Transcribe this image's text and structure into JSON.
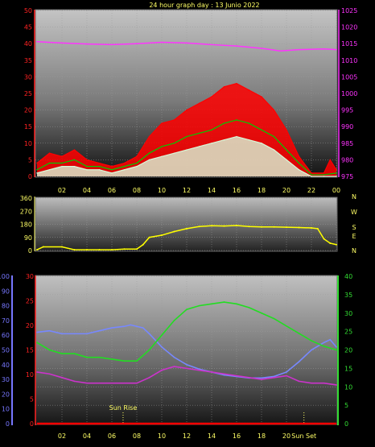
{
  "title": "24 hour graph day : 13 Junio 2022",
  "colors": {
    "red": "#ff0000",
    "green": "#00cc00",
    "pale": "#d8f8d8",
    "magenta": "#ff33ff",
    "yellow": "#ffff00",
    "blue": "#7788ff",
    "purple": "#cc33cc",
    "lime": "#22dd22",
    "ticks": "#ffff66",
    "redaxis": "#ff2222",
    "blueaxis": "#7777ff",
    "greenaxis": "#33dd33"
  },
  "chart_data": [
    {
      "type": "line",
      "panel": "wind-pressure",
      "x_ticks": [
        "02",
        "04",
        "06",
        "08",
        "10",
        "12",
        "14",
        "16",
        "18",
        "20",
        "22",
        "00"
      ],
      "x_tick_hours": [
        2,
        4,
        6,
        8,
        10,
        12,
        14,
        16,
        18,
        20,
        22,
        24
      ],
      "y_left": {
        "range": [
          0,
          50
        ],
        "ticks": [
          "0",
          "5",
          "10",
          "15",
          "20",
          "25",
          "30",
          "35",
          "40",
          "45",
          "50"
        ]
      },
      "y_right": {
        "range": [
          975,
          1025
        ],
        "ticks": [
          "975",
          "980",
          "985",
          "990",
          "995",
          "1000",
          "1005",
          "1010",
          "1015",
          "1020",
          "1025"
        ]
      },
      "grid": true,
      "series": [
        {
          "key": "gust",
          "color": "red",
          "axis": "left",
          "points": [
            [
              0,
              4
            ],
            [
              1,
              7
            ],
            [
              2,
              6
            ],
            [
              3,
              8
            ],
            [
              4,
              5
            ],
            [
              5,
              4
            ],
            [
              6,
              3
            ],
            [
              7,
              4
            ],
            [
              8,
              6
            ],
            [
              9,
              12
            ],
            [
              10,
              16
            ],
            [
              11,
              17
            ],
            [
              12,
              20
            ],
            [
              13,
              22
            ],
            [
              14,
              24
            ],
            [
              15,
              27
            ],
            [
              16,
              28
            ],
            [
              17,
              26
            ],
            [
              18,
              24
            ],
            [
              19,
              20
            ],
            [
              20,
              14
            ],
            [
              21,
              6
            ],
            [
              22,
              1
            ],
            [
              23,
              1
            ],
            [
              23.5,
              5
            ],
            [
              24,
              2
            ]
          ]
        },
        {
          "key": "avg-speed",
          "color": "green",
          "axis": "left",
          "points": [
            [
              0,
              2
            ],
            [
              1,
              4
            ],
            [
              2,
              4
            ],
            [
              3,
              5
            ],
            [
              4,
              3
            ],
            [
              5,
              3
            ],
            [
              6,
              2
            ],
            [
              7,
              3
            ],
            [
              8,
              4
            ],
            [
              9,
              7
            ],
            [
              10,
              9
            ],
            [
              11,
              10
            ],
            [
              12,
              12
            ],
            [
              13,
              13
            ],
            [
              14,
              14
            ],
            [
              15,
              16
            ],
            [
              16,
              17
            ],
            [
              17,
              16
            ],
            [
              18,
              14
            ],
            [
              19,
              12
            ],
            [
              20,
              8
            ],
            [
              21,
              4
            ],
            [
              22,
              0.5
            ],
            [
              23,
              0.5
            ],
            [
              24,
              1
            ]
          ]
        },
        {
          "key": "speed",
          "color": "pale",
          "axis": "left",
          "points": [
            [
              0,
              1
            ],
            [
              1,
              2
            ],
            [
              2,
              3
            ],
            [
              3,
              3
            ],
            [
              4,
              2
            ],
            [
              5,
              2
            ],
            [
              6,
              1
            ],
            [
              7,
              2
            ],
            [
              8,
              3
            ],
            [
              9,
              5
            ],
            [
              10,
              6
            ],
            [
              11,
              7
            ],
            [
              12,
              8
            ],
            [
              13,
              9
            ],
            [
              14,
              10
            ],
            [
              15,
              11
            ],
            [
              16,
              12
            ],
            [
              17,
              11
            ],
            [
              18,
              10
            ],
            [
              19,
              8
            ],
            [
              20,
              5
            ],
            [
              21,
              2
            ],
            [
              22,
              0
            ],
            [
              23,
              0
            ],
            [
              24,
              0
            ]
          ]
        },
        {
          "key": "pressure",
          "color": "magenta",
          "axis": "right",
          "points": [
            [
              0,
              1015.6
            ],
            [
              2,
              1015.2
            ],
            [
              4,
              1014.9
            ],
            [
              6,
              1014.7
            ],
            [
              8,
              1015.0
            ],
            [
              10,
              1015.4
            ],
            [
              12,
              1015.2
            ],
            [
              14,
              1014.7
            ],
            [
              16,
              1014.3
            ],
            [
              18,
              1013.6
            ],
            [
              19.5,
              1012.8
            ],
            [
              21,
              1013.2
            ],
            [
              23,
              1013.4
            ],
            [
              24,
              1013.2
            ]
          ]
        }
      ]
    },
    {
      "type": "line",
      "panel": "wind-direction",
      "x_tick_hours": [
        2,
        4,
        6,
        8,
        10,
        12,
        14,
        16,
        18,
        20,
        22,
        24
      ],
      "y_left": {
        "range": [
          0,
          360
        ],
        "ticks": [
          "0",
          "90",
          "180",
          "270",
          "360"
        ]
      },
      "right_labels": [
        "N",
        "W",
        "S",
        "E",
        "N"
      ],
      "series": [
        {
          "key": "direction",
          "color": "yellow",
          "points": [
            [
              0,
              5
            ],
            [
              0.5,
              25
            ],
            [
              2,
              25
            ],
            [
              3,
              5
            ],
            [
              4,
              5
            ],
            [
              5,
              5
            ],
            [
              6,
              5
            ],
            [
              7,
              10
            ],
            [
              8,
              10
            ],
            [
              8.5,
              40
            ],
            [
              9,
              90
            ],
            [
              10,
              105
            ],
            [
              11,
              130
            ],
            [
              12,
              150
            ],
            [
              13,
              165
            ],
            [
              14,
              170
            ],
            [
              15,
              168
            ],
            [
              16,
              172
            ],
            [
              17,
              165
            ],
            [
              18,
              162
            ],
            [
              19,
              162
            ],
            [
              20,
              160
            ],
            [
              21,
              158
            ],
            [
              22,
              155
            ],
            [
              22.5,
              150
            ],
            [
              23,
              80
            ],
            [
              23.5,
              50
            ],
            [
              24,
              40
            ]
          ]
        }
      ]
    },
    {
      "type": "line",
      "panel": "temp-humidity",
      "x_ticks": [
        "02",
        "04",
        "06",
        "08",
        "10",
        "12",
        "14",
        "16",
        "18",
        "20"
      ],
      "x_tick_hours": [
        2,
        4,
        6,
        8,
        10,
        12,
        14,
        16,
        18,
        20
      ],
      "y_left_outer": {
        "range": [
          0,
          100
        ],
        "ticks": [
          "0",
          "10",
          "20",
          "30",
          "40",
          "50",
          "60",
          "70",
          "80",
          "90",
          "100"
        ]
      },
      "y_left_inner": {
        "range": [
          0,
          30
        ],
        "ticks": [
          "0",
          "5",
          "10",
          "15",
          "20",
          "25",
          "30"
        ]
      },
      "y_right": {
        "range": [
          0,
          40
        ],
        "ticks": [
          "0",
          "5",
          "10",
          "15",
          "20",
          "25",
          "30",
          "35",
          "40"
        ]
      },
      "annotations": [
        {
          "label": "Sun Rise",
          "hour": 6.9
        },
        {
          "label": "Sun Set",
          "hour": 21.4
        }
      ],
      "series": [
        {
          "key": "humidity",
          "color": "blue",
          "axis": "outer",
          "points": [
            [
              0,
              62
            ],
            [
              1,
              63
            ],
            [
              2,
              61
            ],
            [
              3,
              61
            ],
            [
              4,
              61
            ],
            [
              5,
              63
            ],
            [
              6,
              65
            ],
            [
              7,
              66
            ],
            [
              7.5,
              67
            ],
            [
              8.5,
              65
            ],
            [
              9,
              61
            ],
            [
              10,
              52
            ],
            [
              11,
              45
            ],
            [
              12,
              40
            ],
            [
              13,
              37
            ],
            [
              14,
              35
            ],
            [
              15,
              33
            ],
            [
              16,
              32
            ],
            [
              17,
              31
            ],
            [
              18,
              31
            ],
            [
              19,
              32
            ],
            [
              20,
              35
            ],
            [
              21,
              42
            ],
            [
              22,
              50
            ],
            [
              23,
              55
            ],
            [
              23.5,
              57
            ],
            [
              24,
              52
            ]
          ]
        },
        {
          "key": "temperature",
          "color": "lime",
          "axis": "right",
          "points": [
            [
              0,
              22
            ],
            [
              1,
              20
            ],
            [
              2,
              19
            ],
            [
              3,
              19
            ],
            [
              4,
              18
            ],
            [
              5,
              18
            ],
            [
              6,
              17.5
            ],
            [
              7,
              17
            ],
            [
              8,
              17
            ],
            [
              9,
              20
            ],
            [
              10,
              24
            ],
            [
              11,
              28
            ],
            [
              12,
              31
            ],
            [
              13,
              32
            ],
            [
              14,
              32.5
            ],
            [
              15,
              33
            ],
            [
              16,
              32.5
            ],
            [
              17,
              31.5
            ],
            [
              18,
              30
            ],
            [
              19,
              28.5
            ],
            [
              20,
              26.5
            ],
            [
              21,
              24.5
            ],
            [
              22,
              22.5
            ],
            [
              23,
              21
            ],
            [
              24,
              20
            ]
          ]
        },
        {
          "key": "dew-point",
          "color": "purple",
          "axis": "right",
          "points": [
            [
              0,
              14
            ],
            [
              1,
              13.5
            ],
            [
              2,
              12.5
            ],
            [
              3,
              11.5
            ],
            [
              4,
              11
            ],
            [
              5,
              11
            ],
            [
              6,
              11
            ],
            [
              7,
              11
            ],
            [
              8,
              11
            ],
            [
              9,
              12.5
            ],
            [
              10,
              14.5
            ],
            [
              11,
              15.5
            ],
            [
              12,
              15
            ],
            [
              13,
              14.5
            ],
            [
              14,
              14
            ],
            [
              15,
              13.5
            ],
            [
              16,
              13
            ],
            [
              17,
              12.5
            ],
            [
              18,
              12
            ],
            [
              19,
              12.5
            ],
            [
              20,
              13
            ],
            [
              21,
              11.5
            ],
            [
              22,
              11
            ],
            [
              23,
              11
            ],
            [
              24,
              10.5
            ]
          ]
        },
        {
          "key": "zero-line",
          "color": "red",
          "axis": "right",
          "points": [
            [
              0,
              0
            ],
            [
              24,
              0
            ]
          ]
        }
      ]
    }
  ]
}
